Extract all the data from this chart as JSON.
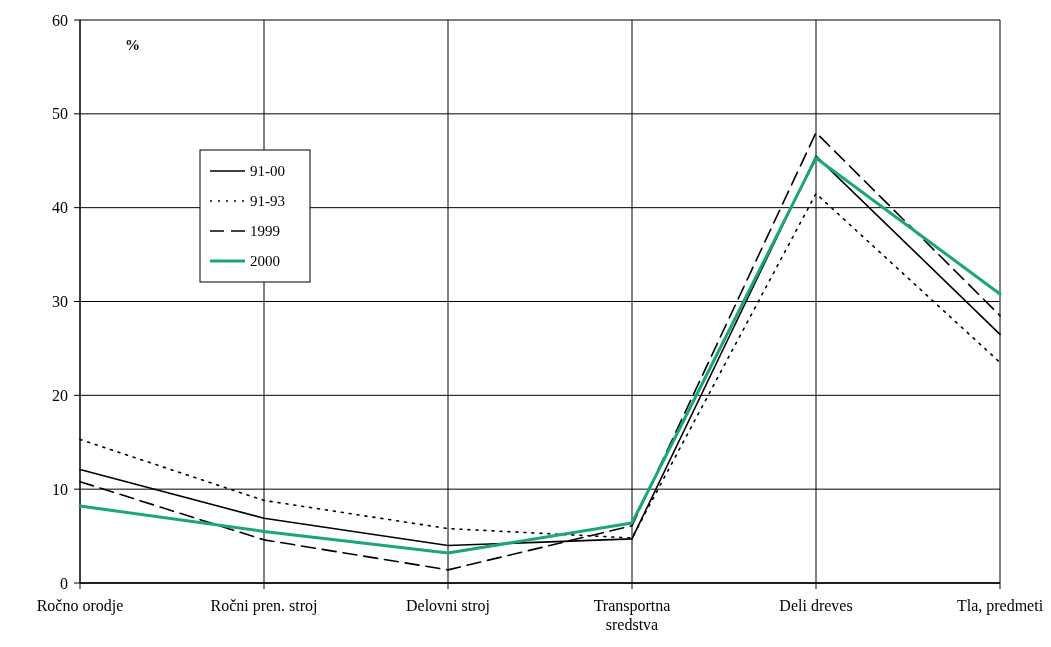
{
  "chart_data": {
    "type": "line",
    "ylabel": "%",
    "categories": [
      "Ročno orodje",
      "Ročni pren. stroj",
      "Delovni stroj",
      "Transportna sredstva",
      "Deli dreves",
      "Tla, predmeti"
    ],
    "series": [
      {
        "name": "91-00",
        "color": "#000000",
        "line_style": "solid",
        "values": [
          12.1,
          6.9,
          4.0,
          4.7,
          45.5,
          26.5
        ]
      },
      {
        "name": "91-93",
        "color": "#000000",
        "line_style": "dotted",
        "values": [
          15.3,
          8.8,
          5.8,
          4.8,
          41.5,
          23.5
        ]
      },
      {
        "name": "1999",
        "color": "#000000",
        "line_style": "dashed",
        "values": [
          10.8,
          4.6,
          1.4,
          6.1,
          48.0,
          28.5
        ]
      },
      {
        "name": "2000",
        "color": "#1aa67a",
        "line_style": "solid",
        "values": [
          8.2,
          5.5,
          3.2,
          6.4,
          45.3,
          30.8
        ]
      }
    ],
    "ylim": [
      0,
      60
    ],
    "yticks": [
      0,
      10,
      20,
      30,
      40,
      50,
      60
    ],
    "grid": true,
    "legend": "top left",
    "marker": "none"
  }
}
